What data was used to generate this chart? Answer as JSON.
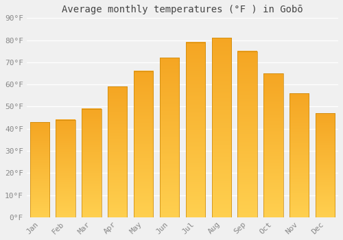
{
  "title": "Average monthly temperatures (°F ) in Gobō",
  "months": [
    "Jan",
    "Feb",
    "Mar",
    "Apr",
    "May",
    "Jun",
    "Jul",
    "Aug",
    "Sep",
    "Oct",
    "Nov",
    "Dec"
  ],
  "values": [
    43,
    44,
    49,
    59,
    66,
    72,
    79,
    81,
    75,
    65,
    56,
    47
  ],
  "bar_color_top": "#F5A623",
  "bar_color_bottom": "#FFD060",
  "bar_border_color": "#C8860A",
  "ylim": [
    0,
    90
  ],
  "yticks": [
    0,
    10,
    20,
    30,
    40,
    50,
    60,
    70,
    80,
    90
  ],
  "ytick_labels": [
    "0°F",
    "10°F",
    "20°F",
    "30°F",
    "40°F",
    "50°F",
    "60°F",
    "70°F",
    "80°F",
    "90°F"
  ],
  "background_color": "#f0f0f0",
  "grid_color": "#ffffff",
  "title_fontsize": 10,
  "tick_fontsize": 8,
  "bar_width": 0.75,
  "figsize": [
    5.0,
    3.5
  ],
  "dpi": 100
}
